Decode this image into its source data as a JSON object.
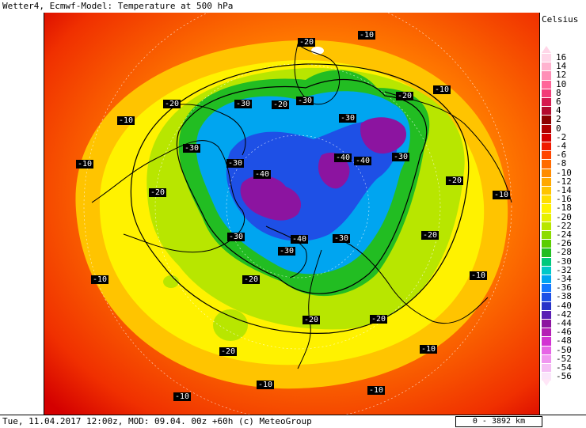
{
  "title": "Wetter4, Ecmwf-Model: Temperature at 500 hPa",
  "footer": "Tue, 11.04.2017 12:00z, MOD: 09.04. 00z +60h (c) MeteoGroup",
  "scale_label": "0 - 3892 km",
  "legend": {
    "unit": "Celsius",
    "items": [
      {
        "label": "16",
        "color": "#ffd6e8"
      },
      {
        "label": "14",
        "color": "#ffb3cf"
      },
      {
        "label": "12",
        "color": "#ff8fb7"
      },
      {
        "label": "10",
        "color": "#ff6699"
      },
      {
        "label": "8",
        "color": "#f23c78"
      },
      {
        "label": "6",
        "color": "#d6194f"
      },
      {
        "label": "4",
        "color": "#b30a2e"
      },
      {
        "label": "2",
        "color": "#8c0000"
      },
      {
        "label": "0",
        "color": "#b00000"
      },
      {
        "label": "-2",
        "color": "#d40000"
      },
      {
        "label": "-4",
        "color": "#f01a00"
      },
      {
        "label": "-6",
        "color": "#ff4500"
      },
      {
        "label": "-8",
        "color": "#ff6a00"
      },
      {
        "label": "-10",
        "color": "#ff8c00"
      },
      {
        "label": "-12",
        "color": "#ffa800"
      },
      {
        "label": "-14",
        "color": "#ffc400"
      },
      {
        "label": "-16",
        "color": "#ffdd00"
      },
      {
        "label": "-18",
        "color": "#fff200"
      },
      {
        "label": "-20",
        "color": "#e6f000"
      },
      {
        "label": "-22",
        "color": "#b8e600"
      },
      {
        "label": "-24",
        "color": "#8cdc00"
      },
      {
        "label": "-26",
        "color": "#5acd00"
      },
      {
        "label": "-28",
        "color": "#22bd22"
      },
      {
        "label": "-30",
        "color": "#00c87d"
      },
      {
        "label": "-32",
        "color": "#00c8c8"
      },
      {
        "label": "-34",
        "color": "#00a5f0"
      },
      {
        "label": "-36",
        "color": "#1478ff"
      },
      {
        "label": "-38",
        "color": "#1e50e6"
      },
      {
        "label": "-40",
        "color": "#2832c8"
      },
      {
        "label": "-42",
        "color": "#5a1eb4"
      },
      {
        "label": "-44",
        "color": "#8c14a0"
      },
      {
        "label": "-46",
        "color": "#b41eb4"
      },
      {
        "label": "-48",
        "color": "#d232d2"
      },
      {
        "label": "-50",
        "color": "#e664e6"
      },
      {
        "label": "-52",
        "color": "#f096f0"
      },
      {
        "label": "-54",
        "color": "#f5bef5"
      },
      {
        "label": "-56",
        "color": "#fae6fa"
      }
    ]
  },
  "isotherm_labels": [
    {
      "text": "-20",
      "lx": 320,
      "ly": 32
    },
    {
      "text": "-10",
      "lx": 396,
      "ly": 23
    },
    {
      "text": "-20",
      "lx": 150,
      "ly": 110
    },
    {
      "text": "-30",
      "lx": 240,
      "ly": 110
    },
    {
      "text": "-20",
      "lx": 287,
      "ly": 111
    },
    {
      "text": "-30",
      "lx": 318,
      "ly": 106
    },
    {
      "text": "-20",
      "lx": 444,
      "ly": 100
    },
    {
      "text": "-10",
      "lx": 491,
      "ly": 92
    },
    {
      "text": "-10",
      "lx": 92,
      "ly": 131
    },
    {
      "text": "-30",
      "lx": 372,
      "ly": 128
    },
    {
      "text": "-30",
      "lx": 175,
      "ly": 166
    },
    {
      "text": "-40",
      "lx": 366,
      "ly": 178
    },
    {
      "text": "-40",
      "lx": 391,
      "ly": 182
    },
    {
      "text": "-30",
      "lx": 439,
      "ly": 177
    },
    {
      "text": "-10",
      "lx": 40,
      "ly": 186
    },
    {
      "text": "-30",
      "lx": 230,
      "ly": 185
    },
    {
      "text": "-40",
      "lx": 264,
      "ly": 199
    },
    {
      "text": "-20",
      "lx": 507,
      "ly": 207
    },
    {
      "text": "-20",
      "lx": 132,
      "ly": 222
    },
    {
      "text": "-10",
      "lx": 566,
      "ly": 225
    },
    {
      "text": "-20",
      "lx": 476,
      "ly": 276
    },
    {
      "text": "-30",
      "lx": 231,
      "ly": 278
    },
    {
      "text": "-40",
      "lx": 311,
      "ly": 281
    },
    {
      "text": "-30",
      "lx": 364,
      "ly": 280
    },
    {
      "text": "-30",
      "lx": 295,
      "ly": 296
    },
    {
      "text": "-10",
      "lx": 59,
      "ly": 332
    },
    {
      "text": "-20",
      "lx": 250,
      "ly": 332
    },
    {
      "text": "-10",
      "lx": 537,
      "ly": 327
    },
    {
      "text": "-20",
      "lx": 326,
      "ly": 383
    },
    {
      "text": "-20",
      "lx": 411,
      "ly": 382
    },
    {
      "text": "-20",
      "lx": 221,
      "ly": 423
    },
    {
      "text": "-10",
      "lx": 474,
      "ly": 420
    },
    {
      "text": "-10",
      "lx": 268,
      "ly": 465
    },
    {
      "text": "-10",
      "lx": 408,
      "ly": 472
    },
    {
      "text": "-10",
      "lx": 163,
      "ly": 480
    }
  ]
}
